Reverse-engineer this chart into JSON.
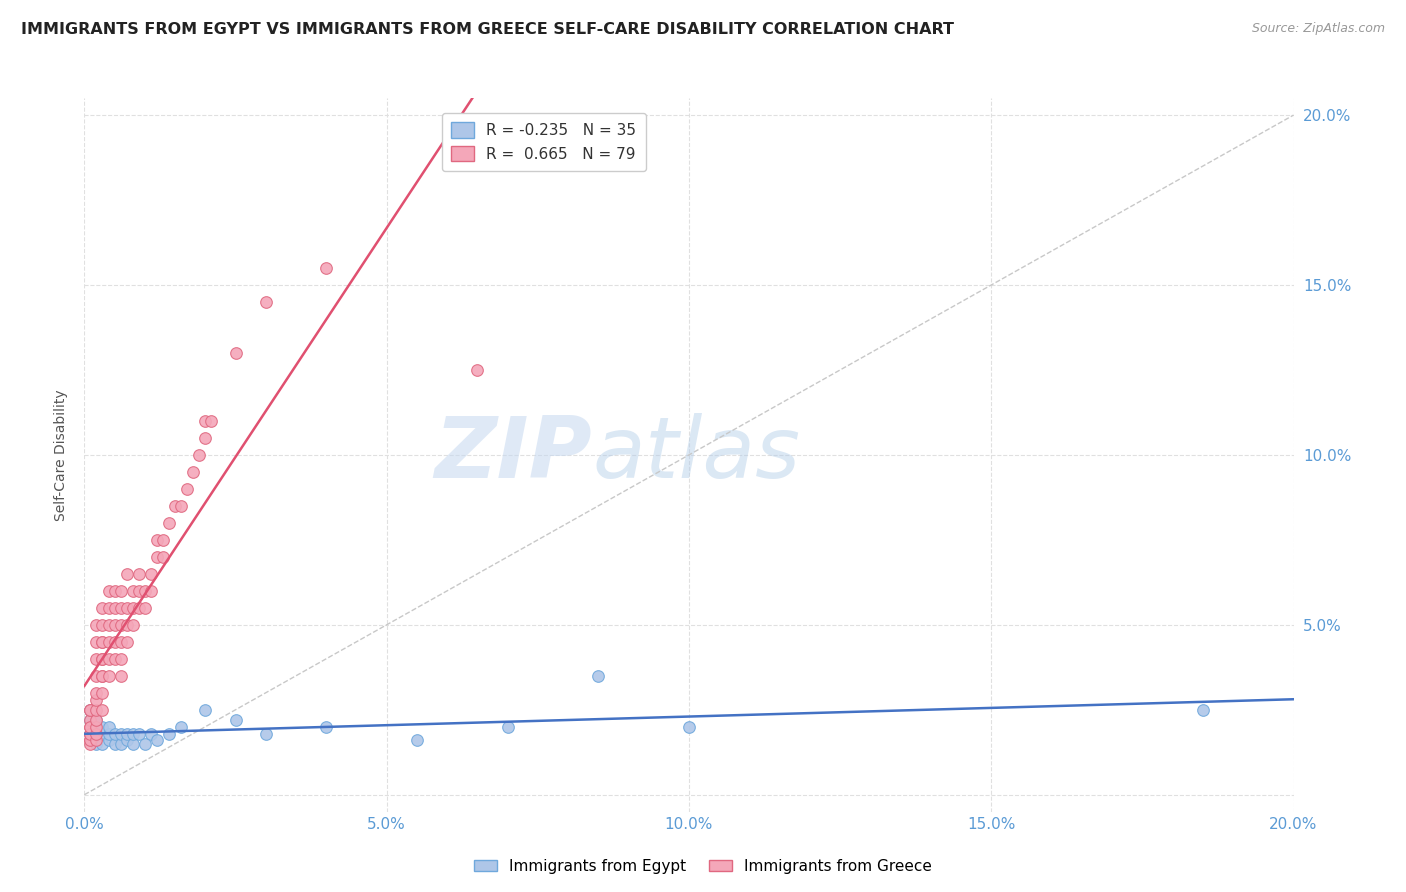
{
  "title": "IMMIGRANTS FROM EGYPT VS IMMIGRANTS FROM GREECE SELF-CARE DISABILITY CORRELATION CHART",
  "source": "Source: ZipAtlas.com",
  "ylabel": "Self-Care Disability",
  "xlim": [
    0.0,
    0.2
  ],
  "ylim": [
    -0.005,
    0.205
  ],
  "xticks": [
    0.0,
    0.05,
    0.1,
    0.15,
    0.2
  ],
  "yticks": [
    0.0,
    0.05,
    0.1,
    0.15,
    0.2
  ],
  "xticklabels": [
    "0.0%",
    "5.0%",
    "10.0%",
    "15.0%",
    "20.0%"
  ],
  "yticklabels": [
    "",
    "5.0%",
    "10.0%",
    "15.0%",
    "20.0%"
  ],
  "egypt_color": "#aec6e8",
  "egypt_edge": "#6fa8dc",
  "greece_color": "#f4a7b9",
  "greece_edge": "#e06880",
  "line_egypt_color": "#4472c4",
  "line_greece_color": "#e05070",
  "diag_color": "#c8c8c8",
  "R_egypt": -0.235,
  "N_egypt": 35,
  "R_greece": 0.665,
  "N_greece": 79,
  "legend_label_egypt": "Immigrants from Egypt",
  "legend_label_greece": "Immigrants from Greece",
  "watermark_zip": "ZIP",
  "watermark_atlas": "atlas",
  "background_color": "#ffffff",
  "egypt_x": [
    0.001,
    0.001,
    0.001,
    0.002,
    0.002,
    0.002,
    0.003,
    0.003,
    0.003,
    0.004,
    0.004,
    0.004,
    0.005,
    0.005,
    0.006,
    0.006,
    0.007,
    0.007,
    0.008,
    0.008,
    0.009,
    0.01,
    0.011,
    0.012,
    0.014,
    0.016,
    0.02,
    0.025,
    0.03,
    0.04,
    0.055,
    0.07,
    0.085,
    0.1,
    0.185
  ],
  "egypt_y": [
    0.018,
    0.022,
    0.025,
    0.015,
    0.018,
    0.022,
    0.015,
    0.018,
    0.02,
    0.016,
    0.018,
    0.02,
    0.015,
    0.018,
    0.015,
    0.018,
    0.016,
    0.018,
    0.015,
    0.018,
    0.018,
    0.015,
    0.018,
    0.016,
    0.018,
    0.02,
    0.025,
    0.022,
    0.018,
    0.02,
    0.016,
    0.02,
    0.035,
    0.02,
    0.025
  ],
  "greece_x": [
    0.001,
    0.001,
    0.001,
    0.001,
    0.001,
    0.001,
    0.001,
    0.001,
    0.001,
    0.001,
    0.002,
    0.002,
    0.002,
    0.002,
    0.002,
    0.002,
    0.002,
    0.002,
    0.002,
    0.002,
    0.002,
    0.003,
    0.003,
    0.003,
    0.003,
    0.003,
    0.003,
    0.003,
    0.003,
    0.003,
    0.003,
    0.004,
    0.004,
    0.004,
    0.004,
    0.004,
    0.004,
    0.005,
    0.005,
    0.005,
    0.005,
    0.005,
    0.006,
    0.006,
    0.006,
    0.006,
    0.006,
    0.006,
    0.007,
    0.007,
    0.007,
    0.007,
    0.008,
    0.008,
    0.008,
    0.009,
    0.009,
    0.009,
    0.01,
    0.01,
    0.011,
    0.011,
    0.012,
    0.012,
    0.013,
    0.013,
    0.014,
    0.015,
    0.016,
    0.017,
    0.018,
    0.019,
    0.02,
    0.02,
    0.021,
    0.025,
    0.03,
    0.04,
    0.065
  ],
  "greece_y": [
    0.016,
    0.018,
    0.02,
    0.022,
    0.025,
    0.015,
    0.016,
    0.018,
    0.02,
    0.025,
    0.016,
    0.018,
    0.02,
    0.022,
    0.025,
    0.028,
    0.03,
    0.035,
    0.04,
    0.045,
    0.05,
    0.025,
    0.03,
    0.035,
    0.04,
    0.045,
    0.05,
    0.055,
    0.035,
    0.04,
    0.045,
    0.035,
    0.04,
    0.045,
    0.05,
    0.055,
    0.06,
    0.04,
    0.045,
    0.05,
    0.055,
    0.06,
    0.035,
    0.04,
    0.045,
    0.05,
    0.055,
    0.06,
    0.045,
    0.05,
    0.055,
    0.065,
    0.05,
    0.055,
    0.06,
    0.055,
    0.06,
    0.065,
    0.055,
    0.06,
    0.06,
    0.065,
    0.07,
    0.075,
    0.07,
    0.075,
    0.08,
    0.085,
    0.085,
    0.09,
    0.095,
    0.1,
    0.105,
    0.11,
    0.11,
    0.13,
    0.145,
    0.155,
    0.125
  ]
}
